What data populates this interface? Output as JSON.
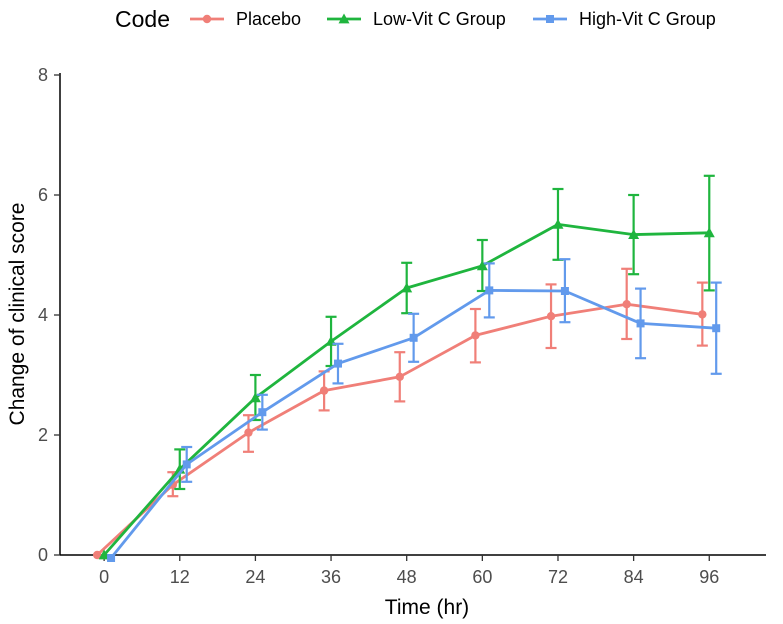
{
  "chart_data": {
    "type": "line",
    "title": "",
    "xlabel": "Time (hr)",
    "ylabel": "Change of clinical score",
    "x": [
      0,
      12,
      24,
      36,
      48,
      60,
      72,
      84,
      96
    ],
    "x_ticks": [
      "0",
      "12",
      "24",
      "36",
      "48",
      "60",
      "72",
      "84",
      "96"
    ],
    "y_ticks": [
      "0",
      "2",
      "4",
      "6",
      "8"
    ],
    "xlim": [
      -7,
      105
    ],
    "ylim": [
      0,
      8
    ],
    "grid": false,
    "legend": {
      "title": "Code",
      "position": "top",
      "entries": [
        "Placebo",
        "Low-Vit C Group",
        "High-Vit C Group"
      ]
    },
    "series": [
      {
        "name": "Placebo",
        "color": "#F07F78",
        "marker": "circle",
        "dodge": -1.1,
        "values": [
          0.0,
          1.17,
          2.04,
          2.74,
          2.97,
          3.66,
          3.98,
          4.18,
          4.01
        ],
        "err_low": [
          0.0,
          0.98,
          1.72,
          2.41,
          2.56,
          3.21,
          3.45,
          3.6,
          3.49
        ],
        "err_high": [
          0.0,
          1.38,
          2.33,
          3.06,
          3.38,
          4.1,
          4.51,
          4.77,
          4.54
        ]
      },
      {
        "name": "Low-Vit C Group",
        "color": "#1FB53E",
        "marker": "triangle",
        "dodge": 0,
        "values": [
          0.0,
          1.43,
          2.62,
          3.56,
          4.45,
          4.82,
          5.51,
          5.34,
          5.37
        ],
        "err_low": [
          0.0,
          1.1,
          2.25,
          3.15,
          4.03,
          4.4,
          4.92,
          4.68,
          4.41
        ],
        "err_high": [
          0.0,
          1.76,
          3.0,
          3.97,
          4.87,
          5.25,
          6.1,
          6.0,
          6.32
        ]
      },
      {
        "name": "High-Vit C Group",
        "color": "#629AEC",
        "marker": "square",
        "dodge": 1.1,
        "values": [
          -0.05,
          1.51,
          2.38,
          3.19,
          3.62,
          4.41,
          4.4,
          3.86,
          3.78
        ],
        "err_low": [
          -0.05,
          1.22,
          2.09,
          2.86,
          3.22,
          3.96,
          3.88,
          3.28,
          3.02
        ],
        "err_high": [
          -0.05,
          1.8,
          2.67,
          3.52,
          4.02,
          4.86,
          4.93,
          4.44,
          4.54
        ]
      }
    ]
  }
}
